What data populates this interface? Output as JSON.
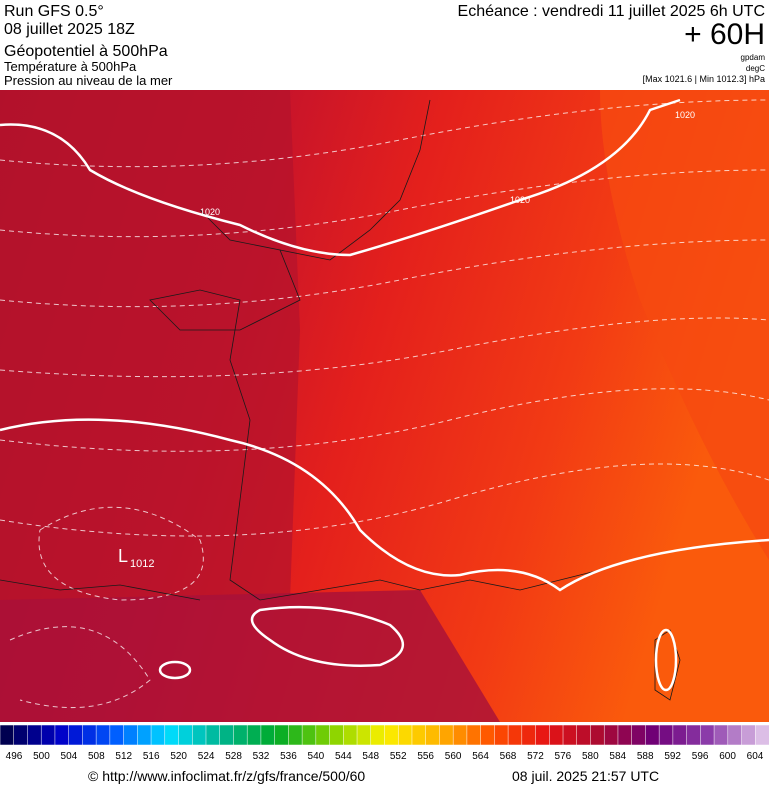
{
  "header": {
    "run": "Run GFS 0.5°",
    "date": "08 juillet 2025 18Z",
    "title": "Géopotentiel à 500hPa",
    "subtitle1": "Température à 500hPa",
    "subtitle2": "Pression au niveau de la mer",
    "echeance": "Echéance : vendredi 11 juillet 2025 6h UTC",
    "lead": "+ 60H",
    "unit_geo": "gpdam",
    "unit_temp": "degC",
    "range": "[Max 1021.6 | Min 1012.3] hPa"
  },
  "map": {
    "isobar_labels": [
      "1020",
      "1020",
      "1020"
    ],
    "low": {
      "symbol": "L",
      "value": "1012"
    }
  },
  "colorbar": {
    "ticks": [
      496,
      500,
      504,
      508,
      512,
      516,
      520,
      524,
      528,
      532,
      536,
      540,
      544,
      548,
      552,
      556,
      560,
      564,
      568,
      572,
      576,
      580,
      584,
      588,
      592,
      596,
      600,
      604
    ]
  },
  "footer": {
    "url": "© http://www.infoclimat.fr/z/gfs/france/500/60",
    "timestamp": "08 juil. 2025 21:57 UTC"
  }
}
